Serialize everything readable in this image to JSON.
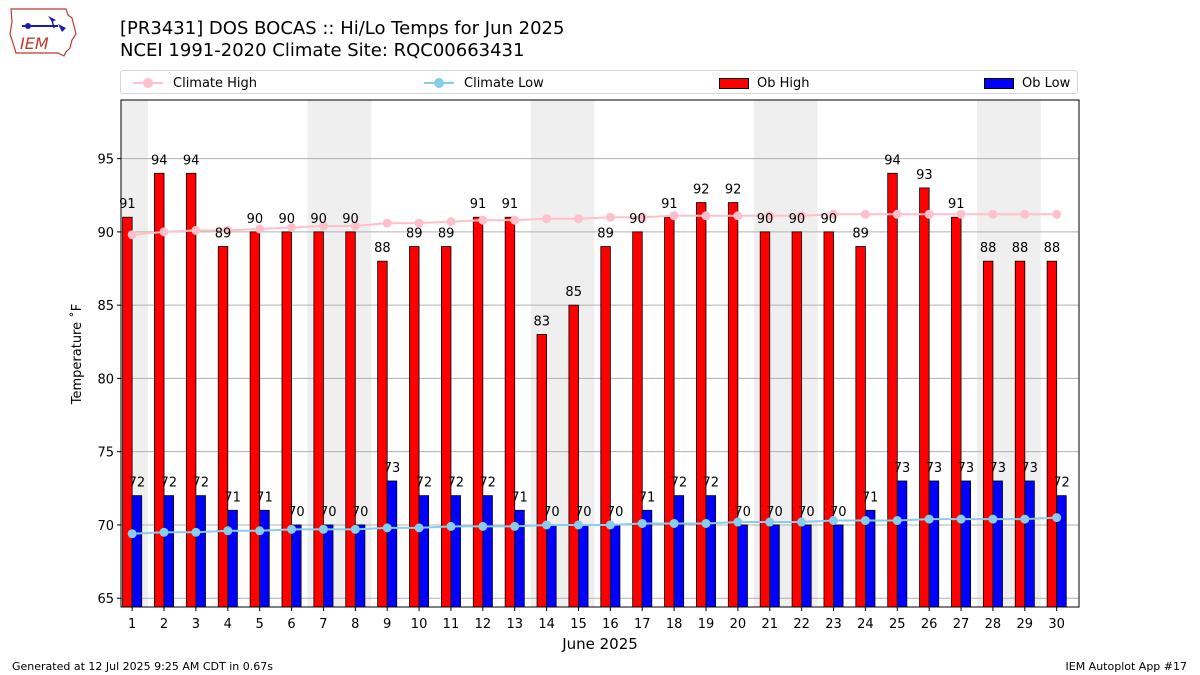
{
  "header": {
    "title_line1": "[PR3431] DOS BOCAS :: Hi/Lo Temps for Jun 2025",
    "title_line2": "NCEI 1991-2020 Climate Site: RQC00663431"
  },
  "legend": {
    "items": [
      {
        "label": "Climate High",
        "kind": "line",
        "color": "#ffc0cb"
      },
      {
        "label": "Climate Low",
        "kind": "line",
        "color": "#87ceeb"
      },
      {
        "label": "Ob High",
        "kind": "bar",
        "color": "#ff0000"
      },
      {
        "label": "Ob Low",
        "kind": "bar",
        "color": "#0000ff"
      }
    ]
  },
  "chart_data": {
    "type": "bar",
    "xlabel": "June 2025",
    "ylabel": "Temperature ˚F",
    "ylim": [
      64.4,
      99.0
    ],
    "yticks": [
      65,
      70,
      75,
      80,
      85,
      90,
      95
    ],
    "categories": [
      "1",
      "2",
      "3",
      "4",
      "5",
      "6",
      "7",
      "8",
      "9",
      "10",
      "11",
      "12",
      "13",
      "14",
      "15",
      "16",
      "17",
      "18",
      "19",
      "20",
      "21",
      "22",
      "23",
      "24",
      "25",
      "26",
      "27",
      "28",
      "29",
      "30"
    ],
    "weekend_shading": [
      [
        1,
        1
      ],
      [
        7,
        8
      ],
      [
        14,
        15
      ],
      [
        21,
        22
      ],
      [
        28,
        29
      ]
    ],
    "series": [
      {
        "name": "Ob High",
        "kind": "bar",
        "color": "#ff0000",
        "values": [
          91,
          94,
          94,
          89,
          90,
          90,
          90,
          90,
          88,
          89,
          89,
          91,
          91,
          83,
          85,
          89,
          90,
          91,
          92,
          92,
          90,
          90,
          90,
          89,
          94,
          93,
          91,
          88,
          88,
          88
        ]
      },
      {
        "name": "Ob Low",
        "kind": "bar",
        "color": "#0000ff",
        "values": [
          72,
          72,
          72,
          71,
          71,
          70,
          70,
          70,
          73,
          72,
          72,
          72,
          71,
          70,
          70,
          70,
          71,
          72,
          72,
          70,
          70,
          70,
          70,
          71,
          73,
          73,
          73,
          73,
          73,
          72
        ]
      },
      {
        "name": "Climate High",
        "kind": "line",
        "color": "#ffc0cb",
        "values": [
          89.8,
          90.0,
          90.1,
          90.1,
          90.2,
          90.3,
          90.4,
          90.4,
          90.6,
          90.6,
          90.7,
          90.8,
          90.8,
          90.9,
          90.9,
          91.0,
          91.0,
          91.1,
          91.1,
          91.1,
          91.1,
          91.1,
          91.2,
          91.2,
          91.2,
          91.2,
          91.2,
          91.2,
          91.2,
          91.2
        ]
      },
      {
        "name": "Climate Low",
        "kind": "line",
        "color": "#87ceeb",
        "values": [
          69.4,
          69.5,
          69.5,
          69.6,
          69.6,
          69.7,
          69.7,
          69.7,
          69.8,
          69.8,
          69.9,
          69.9,
          69.9,
          70.0,
          70.0,
          70.0,
          70.1,
          70.1,
          70.1,
          70.2,
          70.2,
          70.2,
          70.3,
          70.3,
          70.3,
          70.4,
          70.4,
          70.4,
          70.4,
          70.5
        ]
      }
    ],
    "grid": "y"
  },
  "footer": {
    "generated": "Generated at 12 Jul 2025 9:25 AM CDT in 0.67s",
    "app": "IEM Autoplot App #17"
  },
  "logo": {
    "text": "IEM"
  }
}
